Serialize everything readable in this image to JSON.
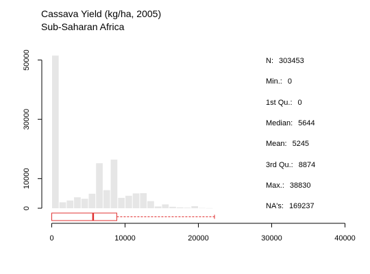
{
  "chart_data": {
    "type": "histogram",
    "title": "Cassava Yield (kg/ha, 2005)",
    "subtitle": "Sub-Saharan Africa",
    "xlabel": "",
    "ylabel": "",
    "xlim": [
      0,
      40000
    ],
    "ylim": [
      0,
      52000
    ],
    "x_ticks": [
      0,
      10000,
      20000,
      30000,
      40000
    ],
    "y_ticks": [
      0,
      10000,
      30000,
      50000
    ],
    "bin_width": 1000,
    "bins": [
      {
        "x0": 0,
        "x1": 1000,
        "count": 51500
      },
      {
        "x0": 1000,
        "x1": 2000,
        "count": 2000
      },
      {
        "x0": 2000,
        "x1": 3000,
        "count": 2600
      },
      {
        "x0": 3000,
        "x1": 4000,
        "count": 3700
      },
      {
        "x0": 4000,
        "x1": 5000,
        "count": 3200
      },
      {
        "x0": 5000,
        "x1": 6000,
        "count": 4900
      },
      {
        "x0": 6000,
        "x1": 7000,
        "count": 15200
      },
      {
        "x0": 7000,
        "x1": 8000,
        "count": 6100
      },
      {
        "x0": 8000,
        "x1": 9000,
        "count": 16400
      },
      {
        "x0": 9000,
        "x1": 10000,
        "count": 3500
      },
      {
        "x0": 10000,
        "x1": 11000,
        "count": 4200
      },
      {
        "x0": 11000,
        "x1": 12000,
        "count": 5000
      },
      {
        "x0": 12000,
        "x1": 13000,
        "count": 5100
      },
      {
        "x0": 13000,
        "x1": 14000,
        "count": 2400
      },
      {
        "x0": 14000,
        "x1": 15000,
        "count": 600
      },
      {
        "x0": 15000,
        "x1": 16000,
        "count": 1300
      },
      {
        "x0": 16000,
        "x1": 17000,
        "count": 500
      },
      {
        "x0": 17000,
        "x1": 18000,
        "count": 300
      },
      {
        "x0": 18000,
        "x1": 19000,
        "count": 200
      },
      {
        "x0": 19000,
        "x1": 20000,
        "count": 700
      },
      {
        "x0": 20000,
        "x1": 21000,
        "count": 100
      },
      {
        "x0": 21000,
        "x1": 22000,
        "count": 50
      }
    ],
    "boxplot": {
      "min": 0,
      "q1": 0,
      "median": 5644,
      "q3": 8874,
      "whisker_max": 22200
    },
    "colors": {
      "bars": "#e6e6e6",
      "box": "#e03030",
      "axis": "#000000"
    }
  },
  "stats": [
    {
      "label": "N:",
      "value": "303453"
    },
    {
      "label": "Min.:",
      "value": "0"
    },
    {
      "label": "1st Qu.:",
      "value": "0"
    },
    {
      "label": "Median:",
      "value": "5644"
    },
    {
      "label": "Mean:",
      "value": "5245"
    },
    {
      "label": "3rd Qu.:",
      "value": "8874"
    },
    {
      "label": "Max.:",
      "value": "38830"
    },
    {
      "label": "NA's:",
      "value": "169237"
    }
  ]
}
